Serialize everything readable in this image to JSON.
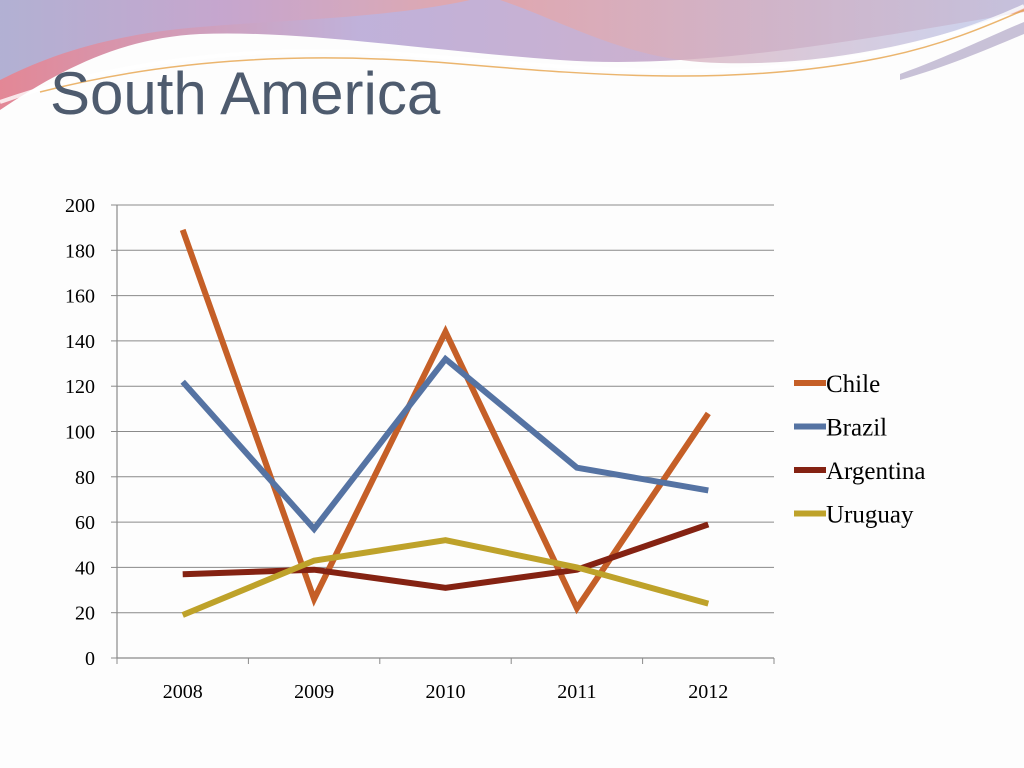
{
  "slide": {
    "title": "South America"
  },
  "colors": {
    "title": "#4e5b6e",
    "gridline": "#8a8a8a",
    "axis": "#8a8a8a"
  },
  "chart_data": {
    "type": "line",
    "title": "",
    "xlabel": "",
    "ylabel": "",
    "categories": [
      "2008",
      "2009",
      "2010",
      "2011",
      "2012"
    ],
    "ylim": [
      0,
      200
    ],
    "ytick_step": 20,
    "y_ticks": [
      "0",
      "20",
      "40",
      "60",
      "80",
      "100",
      "120",
      "140",
      "160",
      "180",
      "200"
    ],
    "grid": true,
    "legend_position": "right",
    "series": [
      {
        "name": "Chile",
        "color": "#c55f27",
        "values": [
          189,
          26,
          144,
          22,
          108
        ]
      },
      {
        "name": "Brazil",
        "color": "#5573a3",
        "values": [
          122,
          57,
          132,
          84,
          74
        ]
      },
      {
        "name": "Argentina",
        "color": "#842212",
        "values": [
          37,
          39,
          31,
          39,
          59
        ]
      },
      {
        "name": "Uruguay",
        "color": "#bea22a",
        "values": [
          19,
          43,
          52,
          40,
          24
        ]
      }
    ]
  }
}
